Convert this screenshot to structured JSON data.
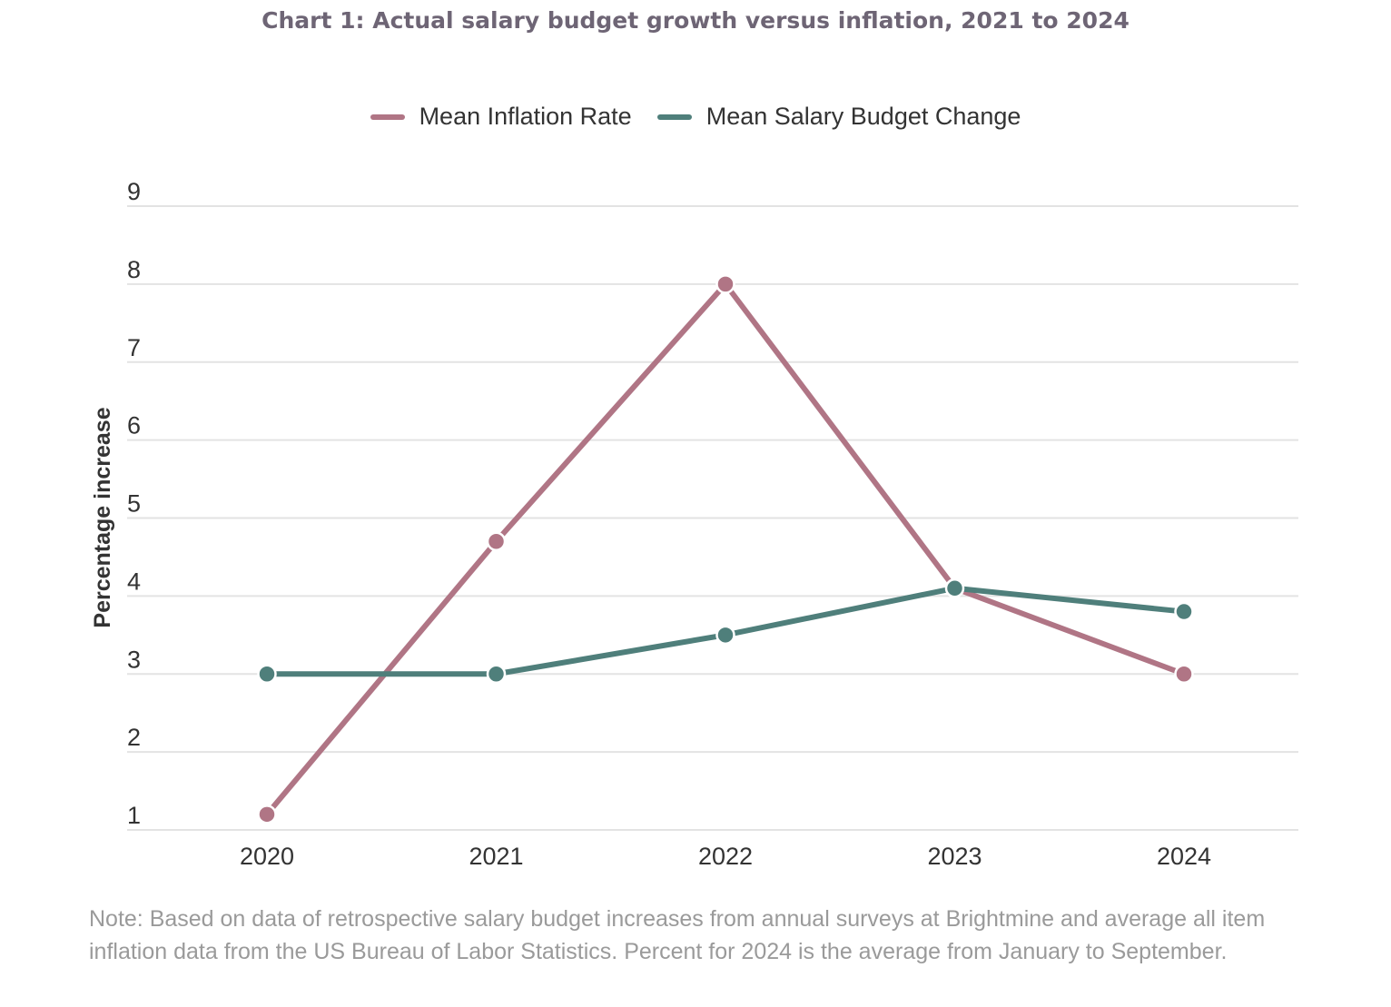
{
  "title": "Chart 1: Actual salary budget growth versus inflation, 2021 to 2024",
  "note": "Note: Based on data of retrospective salary budget increases from annual surveys at Brightmine and average all item inflation data from the US Bureau of Labor Statistics. Percent for 2024 is the average from January to September.",
  "chart_data": {
    "type": "line",
    "title": "Chart 1: Actual salary budget growth versus inflation, 2021 to 2024",
    "xlabel": "",
    "ylabel": "Percentage increase",
    "categories": [
      "2020",
      "2021",
      "2022",
      "2023",
      "2024"
    ],
    "ylim": [
      1,
      9
    ],
    "yticks": [
      "1",
      "2",
      "3",
      "4",
      "5",
      "6",
      "7",
      "8",
      "9"
    ],
    "grid": true,
    "legend_position": "top-center",
    "series": [
      {
        "name": "Mean Inflation Rate",
        "color": "#b07585",
        "values": [
          1.2,
          4.7,
          8.0,
          4.1,
          3.0
        ]
      },
      {
        "name": "Mean Salary Budget Change",
        "color": "#4f7f7b",
        "values": [
          3.0,
          3.0,
          3.5,
          4.1,
          3.8
        ]
      }
    ]
  }
}
